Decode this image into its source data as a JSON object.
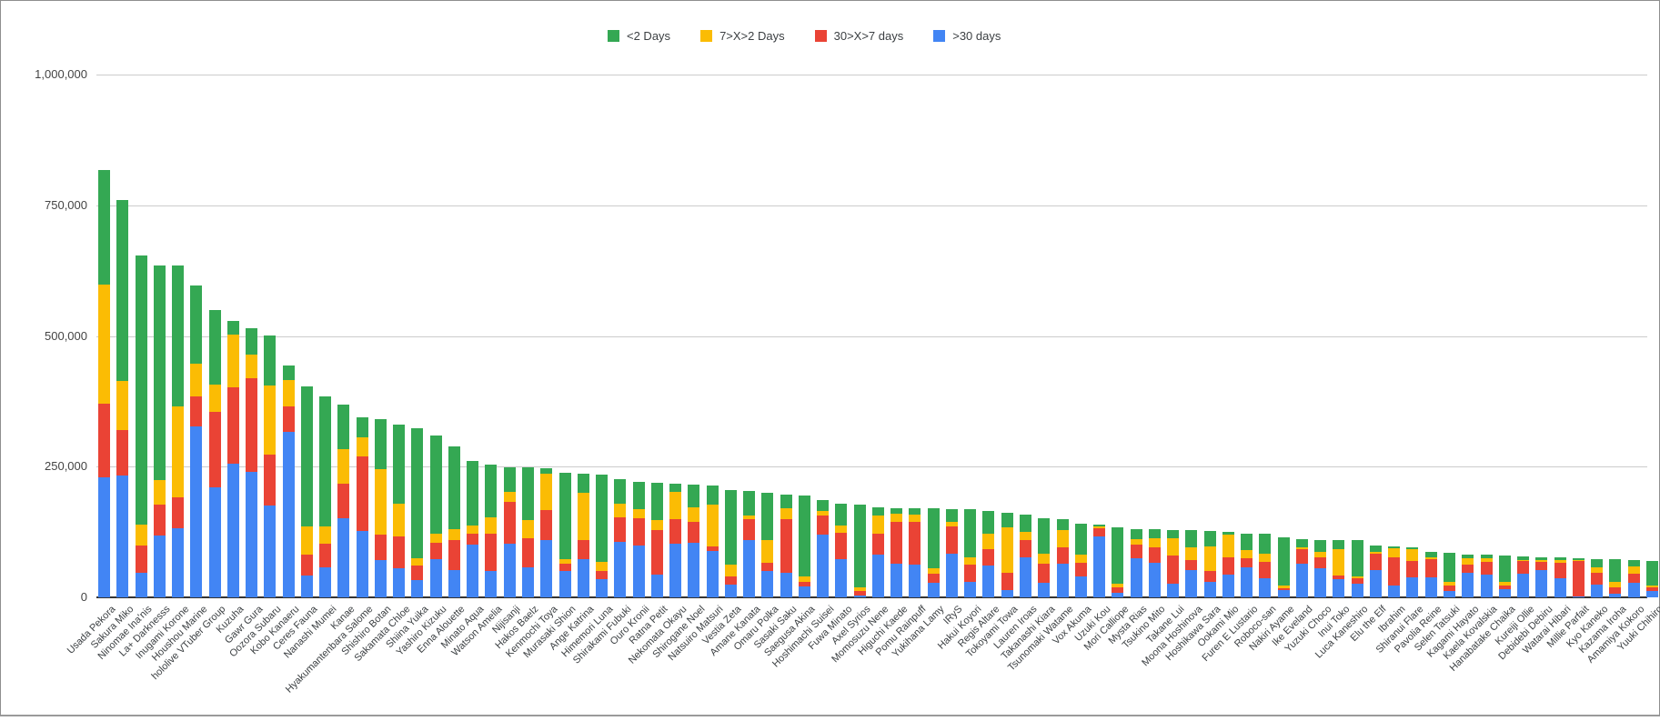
{
  "window": {
    "background": "#ffffff",
    "frame_border_color": "#8f8f8f"
  },
  "chart_data": {
    "type": "bar",
    "stacked": true,
    "title": "",
    "xlabel": "",
    "ylabel": "",
    "ylim": [
      0,
      1000000
    ],
    "grid": true,
    "legend_position": "top",
    "x_label_rotation_deg": 45,
    "y_ticks": [
      {
        "value": 0,
        "label": "0"
      },
      {
        "value": 250000,
        "label": "250,000"
      },
      {
        "value": 500000,
        "label": "500,000"
      },
      {
        "value": 750000,
        "label": "750,000"
      },
      {
        "value": 1000000,
        "label": "1,000,000"
      }
    ],
    "categories": [
      "Usada Pekora",
      "Sakura Miko",
      "Ninomae Ina'nis",
      "La+ Darknesss",
      "Inugami Korone",
      "Houshou Marine",
      "hololive VTuber Group",
      "Kuzuha",
      "Gawr Gura",
      "Oozora Subaru",
      "Kobo Kanaeru",
      "Ceres Fauna",
      "Nanashi Mumei",
      "Kanae",
      "Hyakumantenbara Salome",
      "Shishiro Botan",
      "Sakamata Chloe",
      "Shiina Yuika",
      "Yashiro Kizuku",
      "Enna Alouette",
      "Minato Aqua",
      "Watson Amelia",
      "Nijisanji",
      "Hakos Baelz",
      "Kenmochi Toya",
      "Murasaki Shion",
      "Ange Katrina",
      "Himemori Luna",
      "Shirakami Fubuki",
      "Ouro Kronii",
      "Ratna Petit",
      "Nekomata Okayu",
      "Shirogane Noel",
      "Natsuiro Matsuri",
      "Vestia Zeta",
      "Amane Kanata",
      "Omaru Polka",
      "Sasaki Saku",
      "Saegusa Akina",
      "Hoshimachi Suisei",
      "Fuwa Minato",
      "Axel Syrios",
      "Momosuzu Nene",
      "Higuchi Kaede",
      "Pomu Rainpuff",
      "Yukihana Lamy",
      "IRyS",
      "Hakui Koyori",
      "Regis Altare",
      "Tokoyami Towa",
      "Lauren Iroas",
      "Takanashi Kiara",
      "Tsunomaki Watame",
      "Vox Akuma",
      "Uzuki Kou",
      "Mori Calliope",
      "Mysta Rias",
      "Tsukino Mito",
      "Takane Lui",
      "Moona Hoshinova",
      "Hoshikawa Sara",
      "Ookami Mio",
      "Furen E Lustario",
      "Roboco-san",
      "Nakiri Ayame",
      "Ike Eveland",
      "Yuzuki Choco",
      "Inui Toko",
      "Luca Kaneshiro",
      "Elu the Elf",
      "Ibrahim",
      "Shiranui Flare",
      "Pavolia Reine",
      "Selen Tatsuki",
      "Kagami Hayato",
      "Kaela Kovalskia",
      "Hanabatake Chaika",
      "Kureiji Ollie",
      "Debidebi Debiru",
      "Watarai Hibari",
      "Millie Parfait",
      "Kyo Kaneko",
      "Kazama Iroha",
      "Amamiya Kokoro",
      "Yuuki Chihiro"
    ],
    "stack_order_bottom_to_top": [
      ">30 days",
      "30>X>7 days",
      "7>X>2 Days",
      "<2 Days"
    ],
    "series": [
      {
        "name": "<2 Days",
        "color": "#34a853",
        "values": [
          220000,
          346000,
          515000,
          411000,
          270000,
          150000,
          143000,
          26000,
          50000,
          95000,
          28000,
          268000,
          250000,
          85000,
          39000,
          96000,
          151000,
          248000,
          188000,
          159000,
          124000,
          101000,
          47000,
          100000,
          10000,
          165000,
          37000,
          167000,
          47000,
          52000,
          72000,
          16000,
          44000,
          37000,
          143000,
          46000,
          91000,
          26000,
          154000,
          21000,
          42000,
          158000,
          15000,
          11000,
          13000,
          114000,
          24000,
          91000,
          43000,
          27000,
          32000,
          67000,
          21000,
          59000,
          3000,
          108000,
          20000,
          17000,
          16000,
          33000,
          30000,
          5000,
          32000,
          39000,
          93000,
          15000,
          22000,
          17000,
          69000,
          12000,
          3000,
          3000,
          11000,
          57000,
          7000,
          7000,
          51000,
          6000,
          5000,
          5000,
          3000,
          15000,
          44000,
          13000,
          47000
        ]
      },
      {
        "name": "7>X>2 Days",
        "color": "#fbbc04",
        "values": [
          228000,
          94000,
          40000,
          47000,
          174000,
          62000,
          52000,
          101000,
          45000,
          133000,
          49000,
          54000,
          32000,
          66000,
          36000,
          125000,
          62000,
          14000,
          18000,
          20000,
          15000,
          31000,
          19000,
          35000,
          70000,
          9000,
          90000,
          18000,
          26000,
          18000,
          19000,
          52000,
          28000,
          80000,
          22000,
          7000,
          43000,
          20000,
          11000,
          8000,
          14000,
          7000,
          35000,
          15000,
          13000,
          11000,
          9000,
          14000,
          29000,
          87000,
          16000,
          20000,
          33000,
          16000,
          4000,
          7000,
          10000,
          17000,
          33000,
          23000,
          46000,
          43000,
          16000,
          16000,
          4000,
          3000,
          11000,
          50000,
          3000,
          3000,
          17000,
          23000,
          3000,
          6000,
          11000,
          6000,
          6000,
          3000,
          5000,
          5000,
          3000,
          11000,
          10000,
          13000,
          4000
        ]
      },
      {
        "name": "30>X>7 days",
        "color": "#ea4335",
        "values": [
          140000,
          87000,
          52000,
          59000,
          59000,
          58000,
          145000,
          146000,
          180000,
          97000,
          50000,
          39000,
          45000,
          66000,
          143000,
          49000,
          61000,
          28000,
          31000,
          58000,
          21000,
          72000,
          80000,
          56000,
          57000,
          14000,
          37000,
          15000,
          47000,
          52000,
          85000,
          46000,
          40000,
          8000,
          16000,
          41000,
          16000,
          103000,
          8000,
          37000,
          50000,
          9000,
          40000,
          81000,
          82000,
          17000,
          52000,
          34000,
          32000,
          33000,
          33000,
          36000,
          32000,
          26000,
          15000,
          10000,
          26000,
          30000,
          54000,
          19000,
          22000,
          33000,
          17000,
          30000,
          4000,
          29000,
          20000,
          7000,
          11000,
          32000,
          55000,
          32000,
          35000,
          11000,
          16000,
          24000,
          7000,
          24000,
          15000,
          29000,
          67000,
          22000,
          12000,
          19000,
          6000
        ]
      },
      {
        "name": ">30 days",
        "color": "#4285f4",
        "values": [
          230000,
          233000,
          47000,
          118000,
          132000,
          327000,
          210000,
          256000,
          240000,
          176000,
          316000,
          42000,
          58000,
          151000,
          127000,
          71000,
          56000,
          33000,
          73000,
          52000,
          101000,
          50000,
          103000,
          57000,
          110000,
          50000,
          73000,
          35000,
          106000,
          99000,
          43000,
          103000,
          104000,
          89000,
          24000,
          109000,
          50000,
          47000,
          21000,
          120000,
          73000,
          3000,
          82000,
          64000,
          63000,
          28000,
          84000,
          29000,
          61000,
          14000,
          77000,
          28000,
          64000,
          40000,
          117000,
          9000,
          75000,
          66000,
          26000,
          53000,
          29000,
          44000,
          57000,
          37000,
          14000,
          64000,
          56000,
          35000,
          26000,
          52000,
          22000,
          38000,
          38000,
          12000,
          47000,
          44000,
          16000,
          45000,
          52000,
          37000,
          2000,
          25000,
          7000,
          27000,
          13000
        ]
      }
    ]
  }
}
